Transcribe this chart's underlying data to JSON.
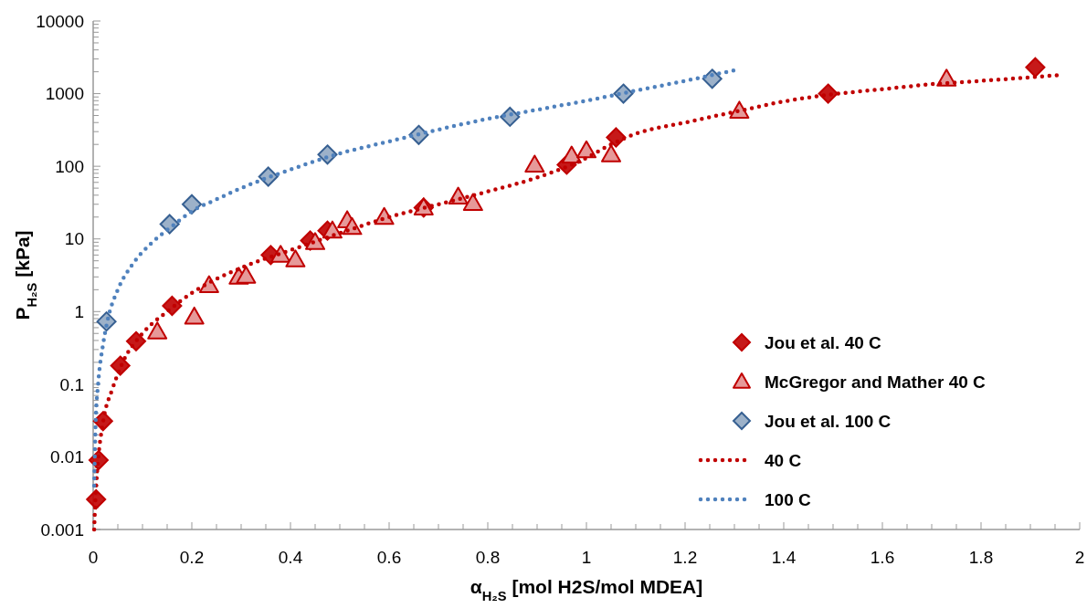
{
  "chart_data": {
    "type": "scatter",
    "xlabel": "α$_{H₂S}$ [mol H2S/mol MDEA]",
    "ylabel": "P$_{H₂S}$ [kPa]",
    "log": "y",
    "xlim": [
      0,
      2
    ],
    "xticks": [
      0,
      0.2,
      0.4,
      0.6,
      0.8,
      1,
      1.2,
      1.4,
      1.6,
      1.8,
      2
    ],
    "ylim": [
      0.001,
      10000
    ],
    "yticks": [
      0.001,
      0.01,
      0.1,
      1,
      10,
      100,
      1000,
      10000
    ],
    "grid": false,
    "legend": "bottom right",
    "series": [
      {
        "name": "Jou et al. 40 C",
        "marker": "diamond",
        "color": "#c00000",
        "x": [
          0.006,
          0.011,
          0.02,
          0.055,
          0.087,
          0.16,
          0.36,
          0.44,
          0.475,
          0.67,
          0.96,
          1.06,
          1.49,
          1.91
        ],
        "values": [
          0.0026,
          0.009,
          0.031,
          0.18,
          0.39,
          1.2,
          6,
          9.5,
          13,
          27,
          105,
          250,
          1000,
          2300
        ]
      },
      {
        "name": "McGregor and Mather 40 C",
        "marker": "triangle",
        "color": "#c00000",
        "x": [
          0.13,
          0.205,
          0.235,
          0.295,
          0.31,
          0.38,
          0.41,
          0.45,
          0.485,
          0.515,
          0.525,
          0.59,
          0.67,
          0.74,
          0.77,
          0.895,
          0.97,
          1.0,
          1.05,
          1.31,
          1.73
        ],
        "values": [
          0.53,
          0.85,
          2.3,
          3,
          3.1,
          6,
          5.2,
          9,
          13,
          18,
          14.5,
          20,
          27,
          38,
          31,
          105,
          140,
          165,
          145,
          580,
          1600
        ]
      },
      {
        "name": "Jou et al. 100 C",
        "marker": "diamond",
        "color": "#376092",
        "x": [
          0.027,
          0.155,
          0.2,
          0.355,
          0.475,
          0.66,
          0.845,
          1.075,
          1.255
        ],
        "values": [
          0.73,
          16,
          30,
          72,
          145,
          270,
          480,
          1000,
          1600
        ]
      },
      {
        "name": "40 C",
        "type": "line",
        "marker": "none",
        "line_style": "dotted",
        "color": "#c00000",
        "x": [
          0.002,
          0.005,
          0.01,
          0.02,
          0.04,
          0.06,
          0.1,
          0.15,
          0.2,
          0.3,
          0.4,
          0.5,
          0.6,
          0.7,
          0.8,
          0.9,
          1.0,
          1.05,
          1.1,
          1.2,
          1.31,
          1.4,
          1.5,
          1.6,
          1.7,
          1.8,
          1.96
        ],
        "values": [
          0.001,
          0.003,
          0.009,
          0.03,
          0.09,
          0.2,
          0.5,
          1.0,
          1.8,
          4,
          7,
          12,
          20,
          30,
          45,
          70,
          130,
          200,
          280,
          400,
          580,
          780,
          980,
          1150,
          1350,
          1500,
          1800
        ]
      },
      {
        "name": "100 C",
        "type": "line",
        "marker": "none",
        "line_style": "dotted",
        "color": "#4f81bd",
        "x": [
          0.002,
          0.005,
          0.01,
          0.02,
          0.03,
          0.05,
          0.08,
          0.12,
          0.16,
          0.2,
          0.25,
          0.3,
          0.4,
          0.5,
          0.6,
          0.7,
          0.8,
          0.9,
          1.0,
          1.1,
          1.2,
          1.3
        ],
        "values": [
          0.004,
          0.03,
          0.1,
          0.35,
          0.8,
          2,
          4.5,
          9,
          15,
          24,
          35,
          50,
          90,
          150,
          220,
          320,
          450,
          600,
          800,
          1100,
          1500,
          2100
        ]
      }
    ]
  }
}
